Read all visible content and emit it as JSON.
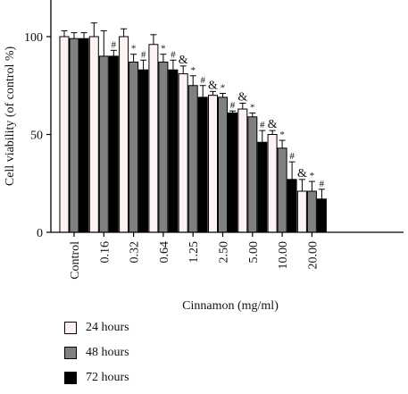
{
  "colors": {
    "24 hours": "#fdf3f3",
    "48 hours": "#808080",
    "72 hours": "#000000"
  },
  "chart_data": {
    "type": "bar",
    "xlabel": "Cinnamon (mg/ml)",
    "ylabel": "Cell viability (of control %)",
    "ylim": [
      0,
      110
    ],
    "yticks": [
      0,
      50,
      100
    ],
    "categories": [
      "Control",
      "0.16",
      "0.32",
      "0.64",
      "1.25",
      "2.50",
      "5.00",
      "10.00",
      "20.00"
    ],
    "series": [
      {
        "name": "24 hours",
        "values": [
          100,
          100,
          100,
          96,
          81,
          70,
          63,
          50,
          21
        ],
        "errors": [
          3,
          7,
          4,
          5,
          4,
          2,
          3,
          2,
          6
        ]
      },
      {
        "name": "48 hours",
        "values": [
          99,
          90,
          87,
          87,
          75,
          69,
          59,
          43,
          21
        ],
        "errors": [
          3,
          13,
          4,
          4,
          5,
          2,
          2,
          4,
          5
        ]
      },
      {
        "name": "72 hours",
        "values": [
          99,
          90,
          83,
          83,
          69,
          61,
          46,
          27,
          17
        ],
        "errors": [
          3,
          3,
          5,
          5,
          6,
          1,
          6,
          9,
          5
        ]
      }
    ],
    "annotations": [
      {
        "category": "0.32",
        "series": "48 hours",
        "text": "*"
      },
      {
        "category": "0.32",
        "series": "72 hours",
        "text": "#"
      },
      {
        "category": "0.16",
        "series": "72 hours",
        "text": "#"
      },
      {
        "category": "0.64",
        "series": "48 hours",
        "text": "*"
      },
      {
        "category": "0.64",
        "series": "72 hours",
        "text": "#"
      },
      {
        "category": "1.25",
        "series": "24 hours",
        "text": "&"
      },
      {
        "category": "1.25",
        "series": "48 hours",
        "text": "*"
      },
      {
        "category": "1.25",
        "series": "72 hours",
        "text": "#"
      },
      {
        "category": "2.50",
        "series": "24 hours",
        "text": "&"
      },
      {
        "category": "2.50",
        "series": "48 hours",
        "text": "*"
      },
      {
        "category": "2.50",
        "series": "72 hours",
        "text": "#"
      },
      {
        "category": "5.00",
        "series": "24 hours",
        "text": "&"
      },
      {
        "category": "5.00",
        "series": "48 hours",
        "text": "*"
      },
      {
        "category": "5.00",
        "series": "72 hours",
        "text": "#"
      },
      {
        "category": "10.00",
        "series": "24 hours",
        "text": "&"
      },
      {
        "category": "10.00",
        "series": "48 hours",
        "text": "*"
      },
      {
        "category": "10.00",
        "series": "72 hours",
        "text": "#"
      },
      {
        "category": "20.00",
        "series": "24 hours",
        "text": "&"
      },
      {
        "category": "20.00",
        "series": "48 hours",
        "text": "*"
      },
      {
        "category": "20.00",
        "series": "72 hours",
        "text": "#"
      }
    ]
  }
}
